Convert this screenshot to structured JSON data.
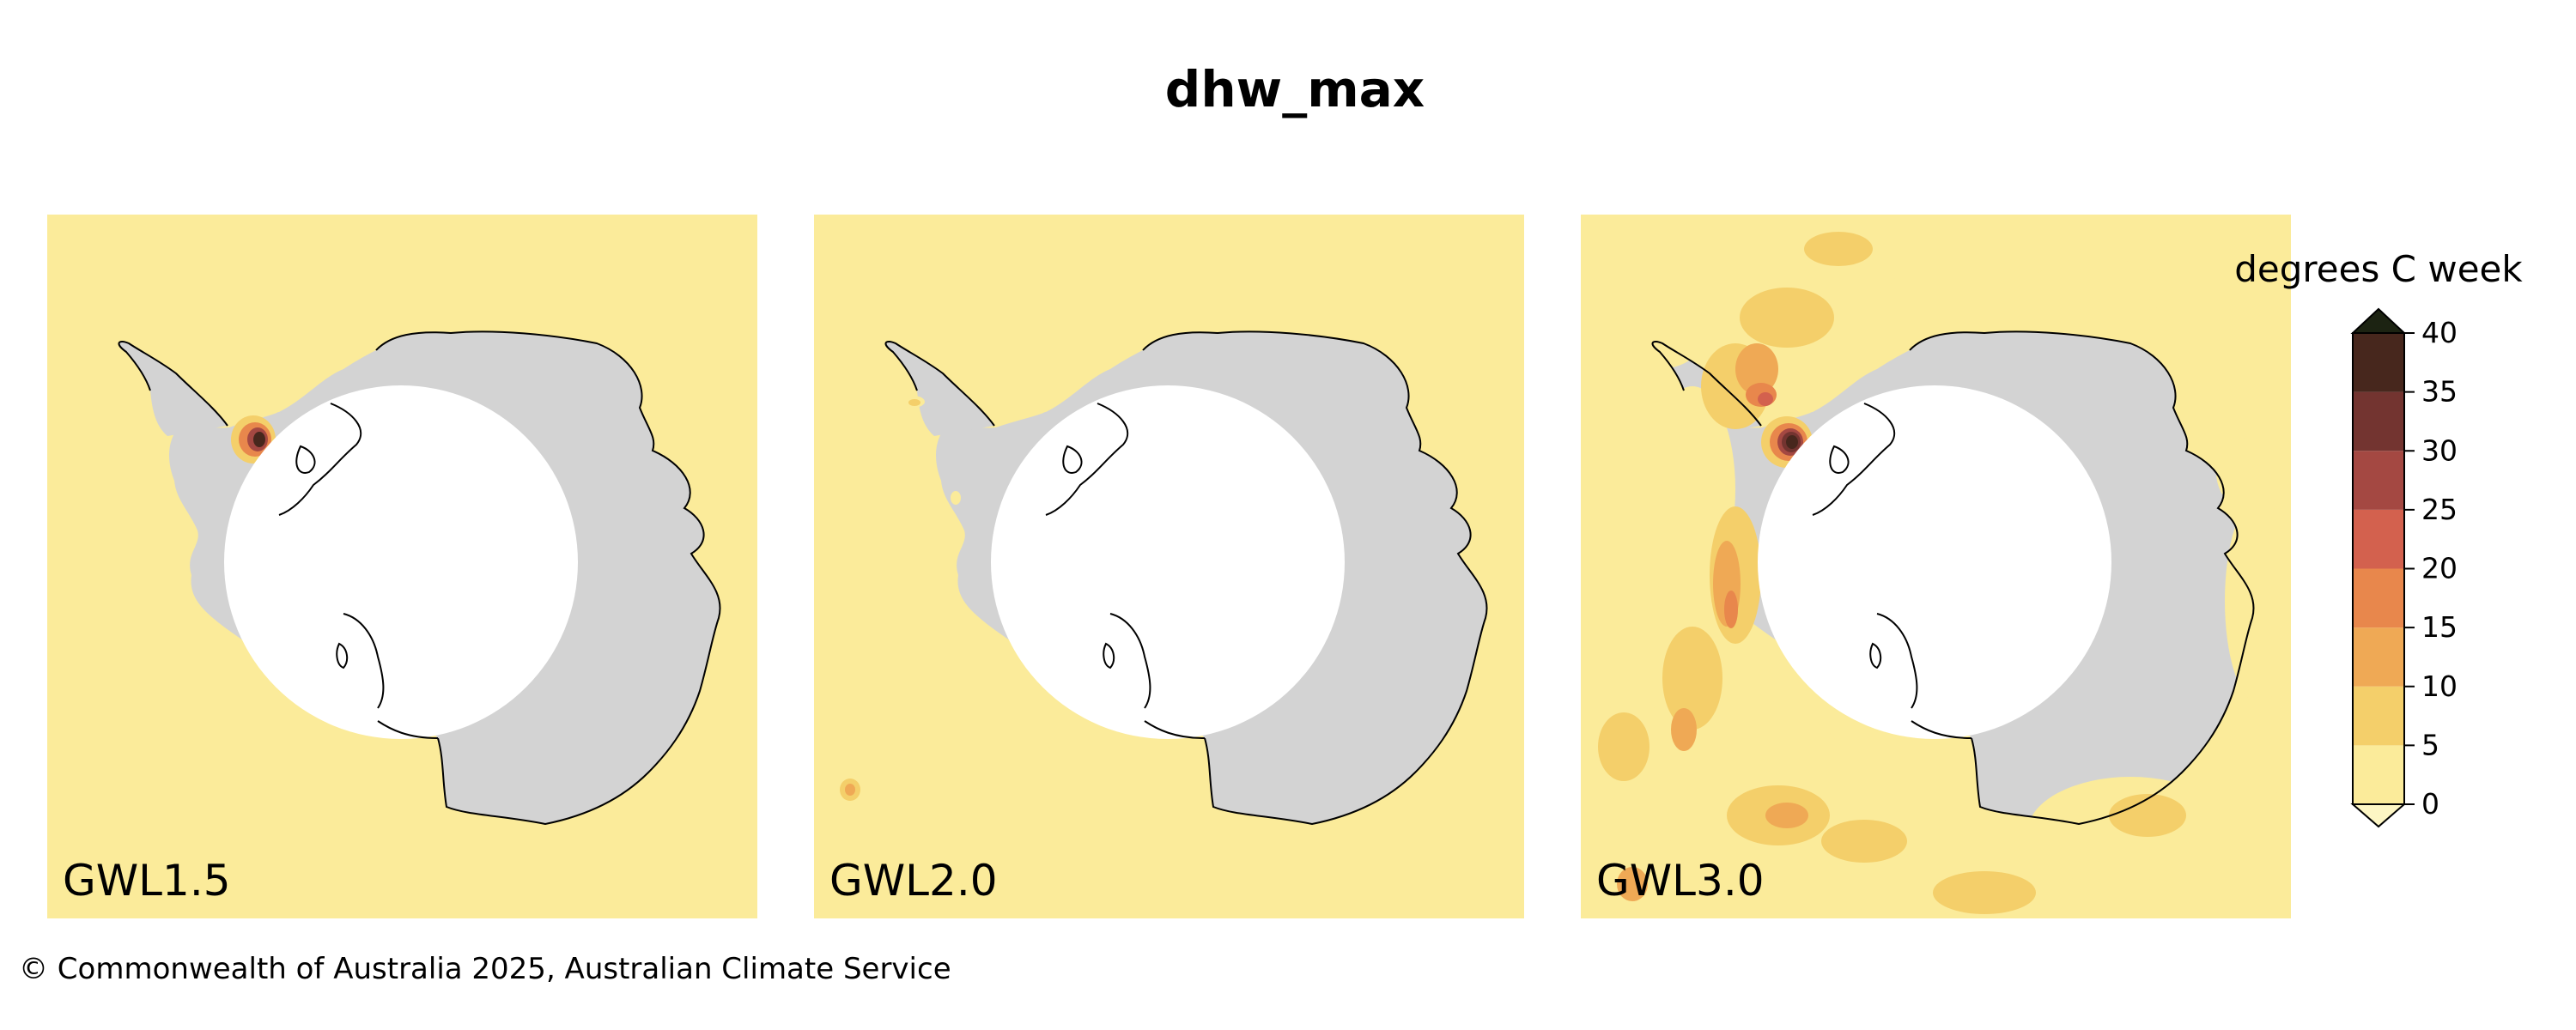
{
  "title": "dhw_max",
  "copyright": "© Commonwealth of Australia 2025, Australian Climate Service",
  "colorbar": {
    "title": "degrees C week",
    "ticks": [
      "0",
      "5",
      "10",
      "15",
      "20",
      "25",
      "30",
      "35",
      "40"
    ],
    "levels": [
      0,
      5,
      10,
      15,
      20,
      25,
      30,
      35,
      40
    ],
    "extend": "both",
    "colors": [
      "#fbeb9a",
      "#f4cf6a",
      "#efa955",
      "#e8874c",
      "#d3614e",
      "#a44842",
      "#733430",
      "#47271d"
    ],
    "under_color": "#fdf6c4",
    "over_color": "#1c2312"
  },
  "colors": {
    "land": "#d3d3d3",
    "mask": "#ffffff",
    "coastline": "#000000"
  },
  "panels": [
    {
      "label": "GWL1.5"
    },
    {
      "label": "GWL2.0"
    },
    {
      "label": "GWL3.0"
    }
  ]
}
